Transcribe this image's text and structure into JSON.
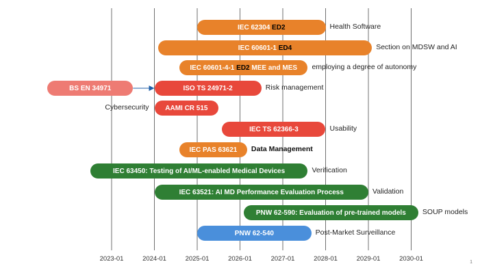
{
  "axis": {
    "ticks": [
      "2023-01",
      "2024-01",
      "2025-01",
      "2026-01",
      "2027-01",
      "2028-01",
      "2029-01",
      "2030-01"
    ],
    "grid": true
  },
  "rows": [
    {
      "id": "iec62304",
      "label": "IEC 62304",
      "edition": "ED2",
      "start": "2025-01",
      "end": "2028-01",
      "color": "#E8822A",
      "note": "Health Software",
      "note_bold": false
    },
    {
      "id": "iec60601-1",
      "label": "IEC 60601-1",
      "edition": "ED4",
      "start": "2024-02",
      "end": "2029-02",
      "color": "#E8822A",
      "note": "Section on MDSW and AI",
      "note_bold": false
    },
    {
      "id": "iec60601-4-1",
      "label": "IEC 60601-4-1",
      "edition": "ED2",
      "extra": "MEE and MES",
      "start": "2024-08",
      "end": "2027-08",
      "color": "#E8822A",
      "note": "employing a degree of autonomy",
      "note_bold": false
    },
    {
      "id": "bsen34971",
      "label": "BS EN 34971",
      "start": "2021-07",
      "end": "2023-07",
      "color": "#EE7B73",
      "note": "",
      "note_bold": false
    },
    {
      "id": "isots24971",
      "label": "ISO TS 24971-2",
      "start": "2024-01",
      "end": "2026-07",
      "color": "#E8483B",
      "note": "Risk management",
      "note_bold": false
    },
    {
      "id": "aamicr515",
      "label": "AAMI CR 515",
      "start": "2024-01",
      "end": "2025-07",
      "color": "#E8483B",
      "note": "Cybersecurity",
      "note_bold": false
    },
    {
      "id": "iects62366",
      "label": "IEC TS 62366-3",
      "start": "2025-08",
      "end": "2028-01",
      "color": "#E8483B",
      "note": "Usability",
      "note_bold": false
    },
    {
      "id": "iecpas63621",
      "label": "IEC PAS 63621",
      "start": "2024-08",
      "end": "2026-03",
      "color": "#E8822A",
      "note": "Data Management",
      "note_bold": true
    },
    {
      "id": "iec63450",
      "label": "IEC 63450: Testing of AI/ML-enabled Medical Devices",
      "start": "2022-07",
      "end": "2027-08",
      "color": "#2F7F34",
      "note": "Verification",
      "note_bold": false
    },
    {
      "id": "iec63521",
      "label": "IEC 63521: AI MD Performance Evaluation Process",
      "start": "2024-01",
      "end": "2029-01",
      "color": "#2F7F34",
      "note": "Validation",
      "note_bold": false
    },
    {
      "id": "pnw62590",
      "label": "PNW 62-590: Evaluation of pre-trained models",
      "start": "2026-02",
      "end": "2030-03",
      "color": "#2F7F34",
      "note": "SOUP models",
      "note_bold": false
    },
    {
      "id": "pnw62540",
      "label": "PNW  62-540",
      "start": "2025-01",
      "end": "2027-09",
      "color": "#4A8FDB",
      "note": "Post-Market Surveillance",
      "note_bold": false
    }
  ],
  "connector": {
    "from": "bsen34971",
    "to": "isots24971"
  },
  "page_number": "1"
}
